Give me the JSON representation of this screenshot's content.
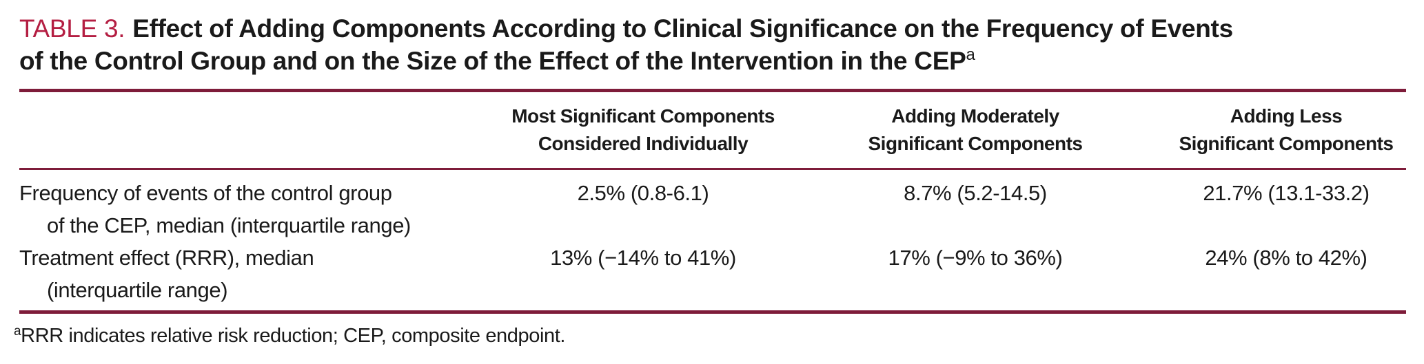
{
  "title": {
    "label": "TABLE 3.",
    "line1": "Effect of Adding Components According to Clinical Significance on the Frequency of Events",
    "line2": "of the Control Group and on the Size of the Effect of the Intervention in the CEP",
    "superscript": "a"
  },
  "table": {
    "columns": [
      {
        "line1": "Most Significant Components",
        "line2": "Considered Individually"
      },
      {
        "line1": "Adding Moderately",
        "line2": "Significant Components"
      },
      {
        "line1": "Adding Less",
        "line2": "Significant Components"
      }
    ],
    "rows": [
      {
        "label_line1": "Frequency of events of the control group",
        "label_line2": "of the CEP, median (interquartile range)",
        "values": [
          "2.5% (0.8-6.1)",
          "8.7% (5.2-14.5)",
          "21.7% (13.1-33.2)"
        ]
      },
      {
        "label_line1": "Treatment effect (RRR), median",
        "label_line2": "(interquartile range)",
        "values": [
          "13% (−14% to 41%)",
          "17% (−9% to 36%)",
          "24% (8% to 42%)"
        ]
      }
    ]
  },
  "footnote": {
    "superscript": "a",
    "text": "RRR indicates relative risk reduction; CEP, composite endpoint."
  },
  "colors": {
    "accent_label": "#b41e42",
    "rule": "#7e1c3a",
    "text": "#1a1a1a",
    "background": "#ffffff"
  },
  "chart_data": {
    "type": "table",
    "title": "TABLE 3. Effect of Adding Components According to Clinical Significance on the Frequency of Events of the Control Group and on the Size of the Effect of the Intervention in the CEP",
    "columns": [
      "",
      "Most Significant Components Considered Individually",
      "Adding Moderately Significant Components",
      "Adding Less Significant Components"
    ],
    "rows": [
      [
        "Frequency of events of the control group of the CEP, median (interquartile range)",
        "2.5% (0.8-6.1)",
        "8.7% (5.2-14.5)",
        "21.7% (13.1-33.2)"
      ],
      [
        "Treatment effect (RRR), median (interquartile range)",
        "13% (−14% to 41%)",
        "17% (−9% to 36%)",
        "24% (8% to 42%)"
      ]
    ],
    "footnote": "aRRR indicates relative risk reduction; CEP, composite endpoint."
  }
}
